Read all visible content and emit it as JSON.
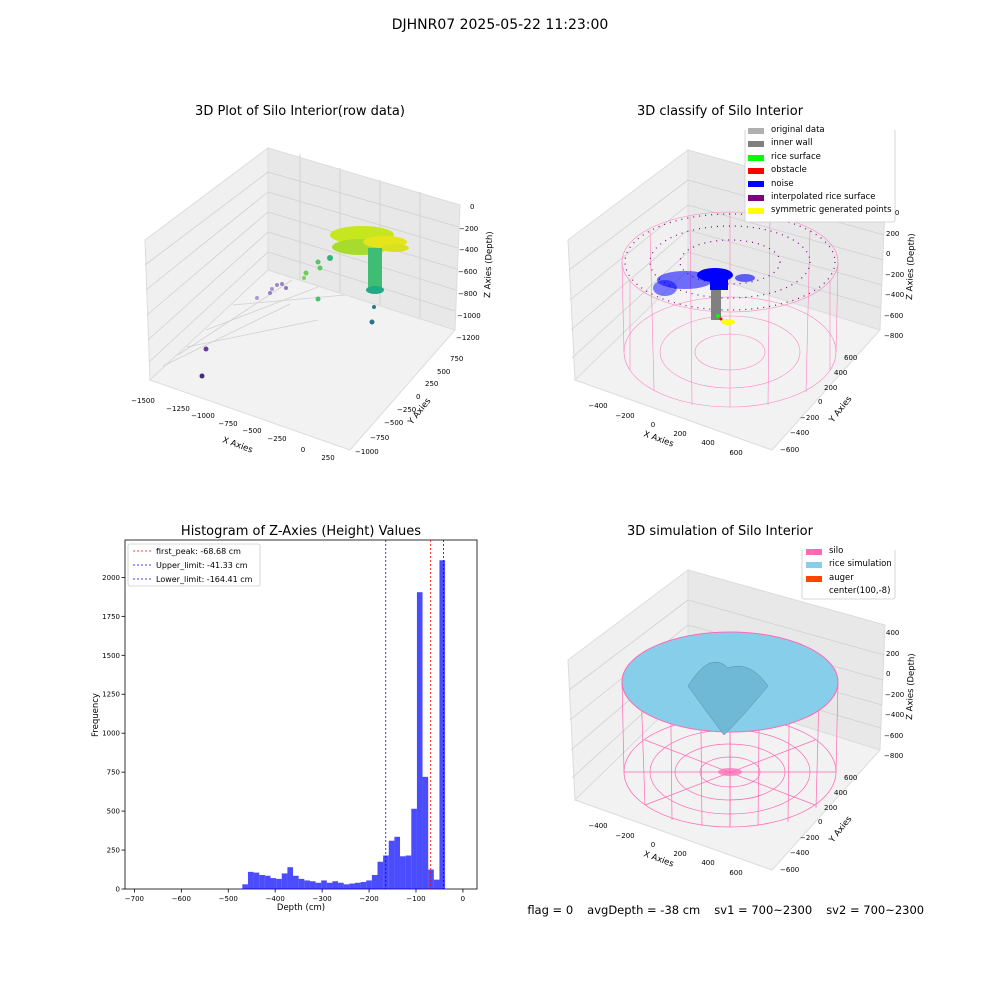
{
  "figure": {
    "suptitle": "DJHNR07 2025-05-22 11:23:00"
  },
  "panels": {
    "raw": {
      "title": "3D Plot of Silo Interior(row data)",
      "xlabel": "X Axies",
      "ylabel": "Y Axies",
      "zlabel": "Z Axies (Depth)",
      "xticks": [
        "−1500",
        "−1250",
        "−1000",
        "−750",
        "−500",
        "−250",
        "0",
        "250"
      ],
      "yticks": [
        "750",
        "500",
        "250",
        "0",
        "−250",
        "−500",
        "−750",
        "−1000"
      ],
      "zticks": [
        "0",
        "−200",
        "−400",
        "−600",
        "−800",
        "−1000",
        "−1200"
      ]
    },
    "classify": {
      "title": "3D classify of Silo Interior",
      "xlabel": "X Axies",
      "ylabel": "Y Axies",
      "zlabel": "Z Axies (Depth)",
      "xticks": [
        "−400",
        "−200",
        "0",
        "200",
        "400",
        "600"
      ],
      "yticks": [
        "600",
        "400",
        "200",
        "0",
        "−200",
        "−400",
        "−600"
      ],
      "zticks": [
        "400",
        "200",
        "0",
        "−200",
        "−400",
        "−600",
        "−800"
      ],
      "legend": [
        {
          "label": "original data",
          "color": "#b0b0b0"
        },
        {
          "label": "inner wall",
          "color": "#808080"
        },
        {
          "label": "rice surface",
          "color": "#00ff00"
        },
        {
          "label": "obstacle",
          "color": "#ff0000"
        },
        {
          "label": "noise",
          "color": "#0000ff"
        },
        {
          "label": "interpolated rice surface",
          "color": "#800080"
        },
        {
          "label": "symmetric generated points",
          "color": "#ffff00"
        }
      ]
    },
    "simulation": {
      "title": "3D simulation of Silo Interior",
      "xlabel": "X Axies",
      "ylabel": "Y Axies",
      "zlabel": "Z Axies (Depth)",
      "xticks": [
        "−400",
        "−200",
        "0",
        "200",
        "400",
        "600"
      ],
      "yticks": [
        "600",
        "400",
        "200",
        "0",
        "−200",
        "−400",
        "−600"
      ],
      "zticks": [
        "400",
        "200",
        "0",
        "−200",
        "−400",
        "−600",
        "−800"
      ],
      "legend": [
        {
          "label": "silo",
          "color": "#ff69b4"
        },
        {
          "label": "rice simulation",
          "color": "#87ceeb"
        },
        {
          "label": "auger",
          "color": "#ff4500"
        },
        {
          "label": "center(100,-8)",
          "color": "#ffffff"
        }
      ]
    }
  },
  "chart_data": [
    {
      "type": "bar",
      "title": "Histogram of Z-Axies (Height) Values",
      "xlabel": "Depth (cm)",
      "ylabel": "Frequency",
      "xlim": [
        -720,
        30
      ],
      "ylim": [
        0,
        2240
      ],
      "bar_color": "#0000ff",
      "xticks": [
        -700,
        -600,
        -500,
        -400,
        -300,
        -200,
        -100,
        0
      ],
      "yticks": [
        0,
        250,
        500,
        750,
        1000,
        1250,
        1500,
        1750,
        2000
      ],
      "bins": [
        {
          "x0": -470,
          "x1": -458,
          "count": 30
        },
        {
          "x0": -458,
          "x1": -446,
          "count": 110
        },
        {
          "x0": -446,
          "x1": -434,
          "count": 105
        },
        {
          "x0": -434,
          "x1": -422,
          "count": 90
        },
        {
          "x0": -422,
          "x1": -410,
          "count": 85
        },
        {
          "x0": -410,
          "x1": -398,
          "count": 70
        },
        {
          "x0": -398,
          "x1": -386,
          "count": 65
        },
        {
          "x0": -386,
          "x1": -374,
          "count": 100
        },
        {
          "x0": -374,
          "x1": -362,
          "count": 140
        },
        {
          "x0": -362,
          "x1": -350,
          "count": 85
        },
        {
          "x0": -350,
          "x1": -338,
          "count": 65
        },
        {
          "x0": -338,
          "x1": -326,
          "count": 55
        },
        {
          "x0": -326,
          "x1": -314,
          "count": 50
        },
        {
          "x0": -314,
          "x1": -302,
          "count": 40
        },
        {
          "x0": -302,
          "x1": -290,
          "count": 55
        },
        {
          "x0": -290,
          "x1": -278,
          "count": 40
        },
        {
          "x0": -278,
          "x1": -266,
          "count": 50
        },
        {
          "x0": -266,
          "x1": -254,
          "count": 40
        },
        {
          "x0": -254,
          "x1": -242,
          "count": 30
        },
        {
          "x0": -242,
          "x1": -230,
          "count": 35
        },
        {
          "x0": -230,
          "x1": -218,
          "count": 40
        },
        {
          "x0": -218,
          "x1": -206,
          "count": 45
        },
        {
          "x0": -206,
          "x1": -194,
          "count": 55
        },
        {
          "x0": -194,
          "x1": -182,
          "count": 90
        },
        {
          "x0": -182,
          "x1": -170,
          "count": 175
        },
        {
          "x0": -170,
          "x1": -158,
          "count": 215
        },
        {
          "x0": -158,
          "x1": -146,
          "count": 310
        },
        {
          "x0": -146,
          "x1": -134,
          "count": 335
        },
        {
          "x0": -134,
          "x1": -122,
          "count": 210
        },
        {
          "x0": -122,
          "x1": -110,
          "count": 215
        },
        {
          "x0": -110,
          "x1": -98,
          "count": 515
        },
        {
          "x0": -98,
          "x1": -86,
          "count": 1905
        },
        {
          "x0": -86,
          "x1": -74,
          "count": 720
        },
        {
          "x0": -74,
          "x1": -62,
          "count": 125
        },
        {
          "x0": -62,
          "x1": -50,
          "count": 60
        },
        {
          "x0": -50,
          "x1": -38,
          "count": 2110
        }
      ],
      "vlines": [
        {
          "label": "first_peak: -68.68 cm",
          "x": -68.68,
          "color": "#ff0000"
        },
        {
          "label": "Upper_limit: -41.33 cm",
          "x": -41.33,
          "color": "#0000ff"
        },
        {
          "label": "Lower_limit: -164.41 cm",
          "x": -164.41,
          "color": "#0000ff"
        }
      ],
      "legend_position": "top-left"
    }
  ],
  "status": {
    "flag": "flag = 0",
    "avg_depth": "avgDepth = -38 cm",
    "sv1": "sv1 = 700~2300",
    "sv2": "sv2 = 700~2300"
  }
}
